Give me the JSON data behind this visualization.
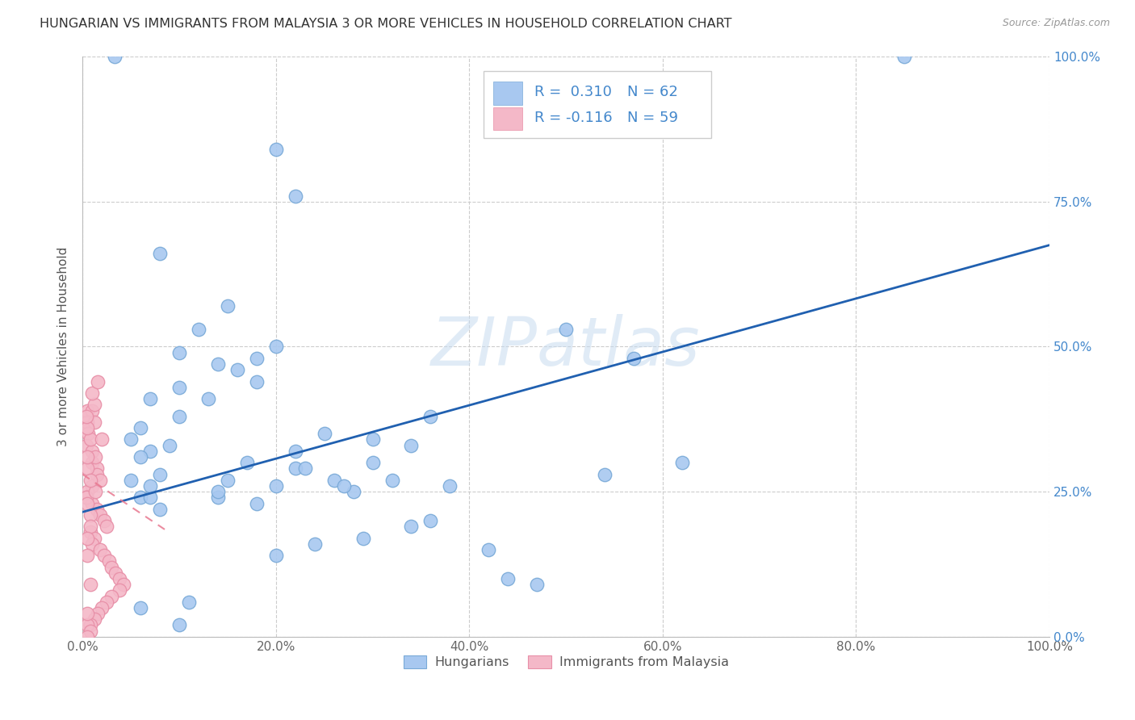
{
  "title": "HUNGARIAN VS IMMIGRANTS FROM MALAYSIA 3 OR MORE VEHICLES IN HOUSEHOLD CORRELATION CHART",
  "source": "Source: ZipAtlas.com",
  "ylabel": "3 or more Vehicles in Household",
  "xlim": [
    0,
    1
  ],
  "ylim": [
    0,
    1
  ],
  "xtick_labels": [
    "0.0%",
    "20.0%",
    "40.0%",
    "60.0%",
    "80.0%",
    "100.0%"
  ],
  "ytick_labels": [
    "0.0%",
    "25.0%",
    "50.0%",
    "75.0%",
    "100.0%"
  ],
  "ytick_pos": [
    0,
    0.25,
    0.5,
    0.75,
    1.0
  ],
  "xtick_pos": [
    0,
    0.2,
    0.4,
    0.6,
    0.8,
    1.0
  ],
  "blue_R": "0.310",
  "blue_N": "62",
  "pink_R": "-0.116",
  "pink_N": "59",
  "legend_labels": [
    "Hungarians",
    "Immigrants from Malaysia"
  ],
  "blue_color": "#A8C8F0",
  "pink_color": "#F4B8C8",
  "blue_marker_edge": "#7AAAD8",
  "pink_marker_edge": "#E890A8",
  "blue_line_color": "#2060B0",
  "pink_line_color": "#E87890",
  "watermark": "ZIPatlas",
  "watermark_color": "#C8DCF0",
  "legend_text_color": "#4488CC",
  "blue_x": [
    0.033,
    0.85,
    0.2,
    0.22,
    0.08,
    0.15,
    0.12,
    0.1,
    0.14,
    0.18,
    0.1,
    0.07,
    0.06,
    0.05,
    0.07,
    0.06,
    0.05,
    0.06,
    0.07,
    0.08,
    0.07,
    0.08,
    0.09,
    0.1,
    0.13,
    0.16,
    0.18,
    0.2,
    0.22,
    0.26,
    0.28,
    0.3,
    0.32,
    0.34,
    0.36,
    0.38,
    0.34,
    0.29,
    0.24,
    0.2,
    0.18,
    0.11,
    0.42,
    0.44,
    0.47,
    0.5,
    0.54,
    0.57,
    0.62,
    0.3,
    0.15,
    0.14,
    0.23,
    0.25,
    0.27,
    0.22,
    0.2,
    0.17,
    0.14,
    0.1,
    0.06,
    0.36
  ],
  "blue_y": [
    1.0,
    1.0,
    0.84,
    0.76,
    0.66,
    0.57,
    0.53,
    0.49,
    0.47,
    0.44,
    0.43,
    0.41,
    0.36,
    0.34,
    0.32,
    0.31,
    0.27,
    0.24,
    0.24,
    0.22,
    0.26,
    0.28,
    0.33,
    0.38,
    0.41,
    0.46,
    0.48,
    0.5,
    0.29,
    0.27,
    0.25,
    0.3,
    0.27,
    0.33,
    0.2,
    0.26,
    0.19,
    0.17,
    0.16,
    0.14,
    0.23,
    0.06,
    0.15,
    0.1,
    0.09,
    0.53,
    0.28,
    0.48,
    0.3,
    0.34,
    0.27,
    0.24,
    0.29,
    0.35,
    0.26,
    0.32,
    0.26,
    0.3,
    0.25,
    0.02,
    0.05,
    0.38
  ],
  "pink_x": [
    0.005,
    0.01,
    0.005,
    0.012,
    0.006,
    0.004,
    0.01,
    0.01,
    0.015,
    0.015,
    0.01,
    0.005,
    0.004,
    0.01,
    0.015,
    0.018,
    0.022,
    0.025,
    0.018,
    0.013,
    0.008,
    0.005,
    0.004,
    0.008,
    0.012,
    0.01,
    0.018,
    0.022,
    0.027,
    0.03,
    0.034,
    0.038,
    0.042,
    0.038,
    0.03,
    0.025,
    0.02,
    0.016,
    0.012,
    0.008,
    0.005,
    0.008,
    0.005,
    0.012,
    0.01,
    0.016,
    0.02,
    0.004,
    0.008,
    0.013,
    0.005,
    0.008,
    0.005,
    0.008,
    0.005,
    0.005,
    0.008,
    0.005,
    0.005
  ],
  "pink_y": [
    0.39,
    0.39,
    0.37,
    0.37,
    0.35,
    0.33,
    0.32,
    0.3,
    0.29,
    0.28,
    0.26,
    0.25,
    0.24,
    0.23,
    0.22,
    0.21,
    0.2,
    0.19,
    0.27,
    0.31,
    0.34,
    0.36,
    0.38,
    0.18,
    0.17,
    0.16,
    0.15,
    0.14,
    0.13,
    0.12,
    0.11,
    0.1,
    0.09,
    0.08,
    0.07,
    0.06,
    0.05,
    0.04,
    0.03,
    0.02,
    0.02,
    0.01,
    0.0,
    0.4,
    0.42,
    0.44,
    0.34,
    0.24,
    0.21,
    0.25,
    0.29,
    0.19,
    0.14,
    0.09,
    0.04,
    0.31,
    0.27,
    0.17,
    0.23
  ],
  "blue_line_x": [
    0.0,
    1.0
  ],
  "blue_line_y": [
    0.215,
    0.675
  ],
  "pink_line_x": [
    0.0,
    0.085
  ],
  "pink_line_y": [
    0.28,
    0.185
  ]
}
